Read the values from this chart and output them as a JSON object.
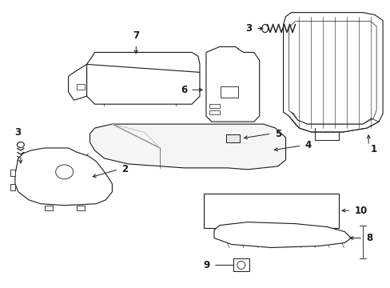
{
  "background_color": "#ffffff",
  "figsize": [
    4.89,
    3.6
  ],
  "dpi": 100,
  "line_color": "#1a1a1a",
  "label_color": "#1a1a1a",
  "label_fontsize": 8.5,
  "line_width": 0.8
}
